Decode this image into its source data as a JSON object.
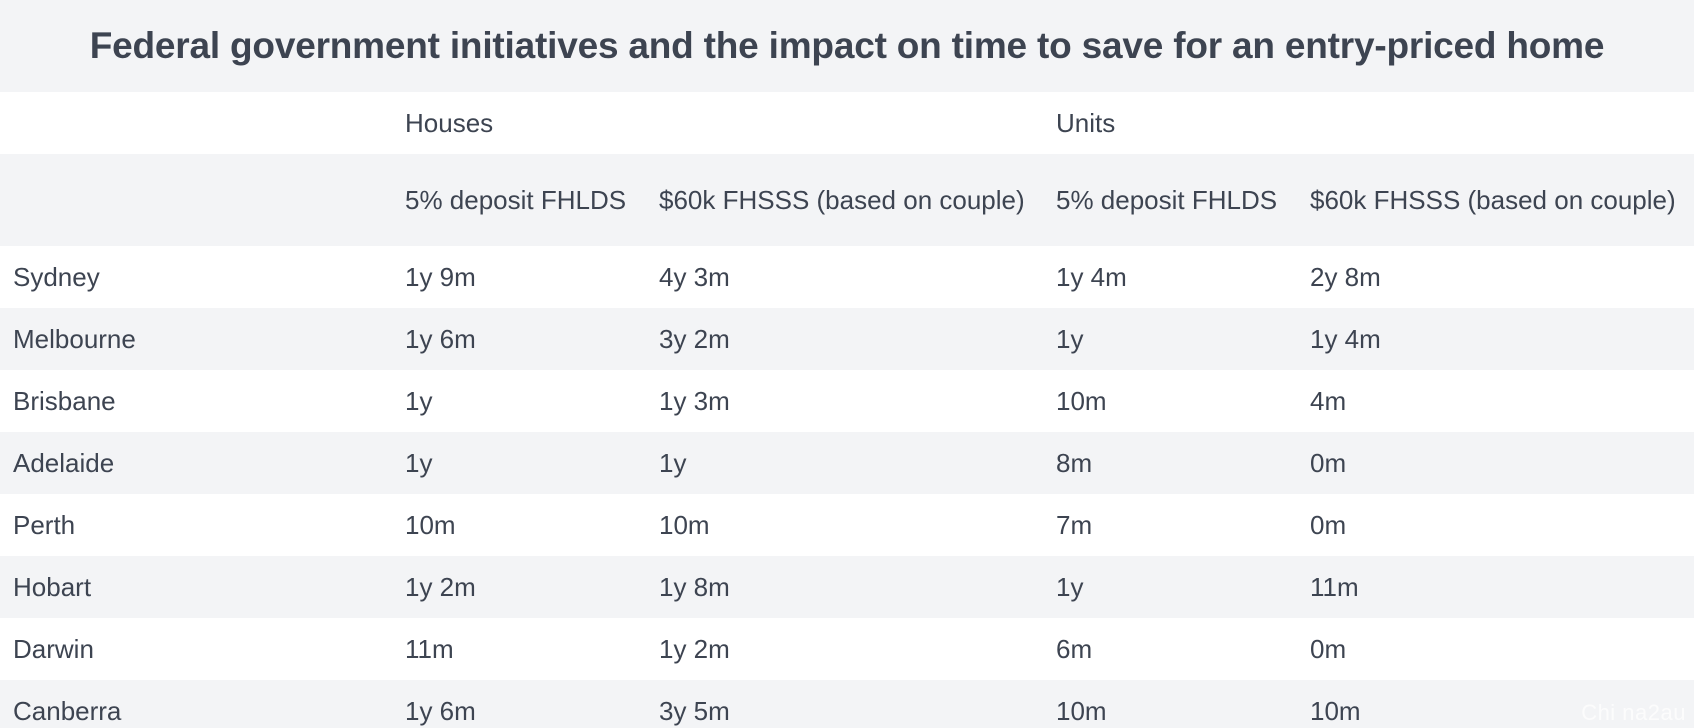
{
  "title": "Federal government initiatives and the impact on time to save for an entry-priced home",
  "groups": {
    "houses": "Houses",
    "units": "Units"
  },
  "subheaders": {
    "houses_fhlds": "5% deposit FHLDS",
    "houses_fhsss": "$60k FHSSS (based on couple)",
    "units_fhlds": "5% deposit FHLDS",
    "units_fhsss": "$60k FHSSS (based on couple)"
  },
  "rows": [
    {
      "city": "Sydney",
      "houses_fhlds": "1y 9m",
      "houses_fhsss": "4y 3m",
      "units_fhlds": "1y 4m",
      "units_fhsss": "2y 8m"
    },
    {
      "city": "Melbourne",
      "houses_fhlds": "1y 6m",
      "houses_fhsss": "3y 2m",
      "units_fhlds": "1y",
      "units_fhsss": "1y 4m"
    },
    {
      "city": "Brisbane",
      "houses_fhlds": "1y",
      "houses_fhsss": "1y 3m",
      "units_fhlds": "10m",
      "units_fhsss": "4m"
    },
    {
      "city": "Adelaide",
      "houses_fhlds": "1y",
      "houses_fhsss": "1y",
      "units_fhlds": "8m",
      "units_fhsss": "0m"
    },
    {
      "city": "Perth",
      "houses_fhlds": "10m",
      "houses_fhsss": "10m",
      "units_fhlds": "7m",
      "units_fhsss": "0m"
    },
    {
      "city": "Hobart",
      "houses_fhlds": "1y 2m",
      "houses_fhsss": "1y 8m",
      "units_fhlds": "1y",
      "units_fhsss": "11m"
    },
    {
      "city": "Darwin",
      "houses_fhlds": "11m",
      "houses_fhsss": "1y 2m",
      "units_fhlds": "6m",
      "units_fhsss": "0m"
    },
    {
      "city": "Canberra",
      "houses_fhlds": "1y 6m",
      "houses_fhsss": "3y 5m",
      "units_fhlds": "10m",
      "units_fhsss": "10m"
    }
  ],
  "watermark": "Chi na2au"
}
